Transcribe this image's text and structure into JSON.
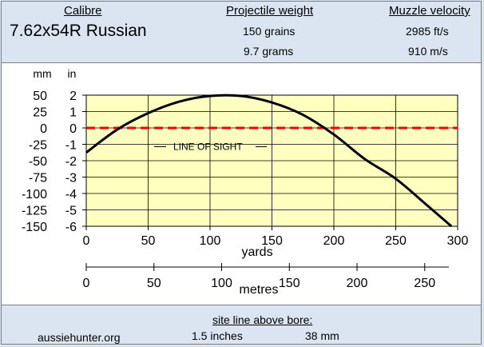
{
  "header": {
    "calibre_label": "Calibre",
    "calibre_value": "7.62x54R Russian",
    "projectile_label": "Projectile weight",
    "projectile_grains": "150 grains",
    "projectile_grams": "9.7 grams",
    "velocity_label": "Muzzle velocity",
    "velocity_fps": "2985 ft/s",
    "velocity_ms": "910 m/s"
  },
  "footer": {
    "site_line_label": "site line above bore:",
    "site": "aussiehunter.org",
    "height_in": "1.5 inches",
    "height_mm": "38 mm"
  },
  "colors": {
    "plot_bg": "#ffffc0",
    "trajectory": "#000000",
    "line_of_sight": "#ff0000",
    "grid": "#000000"
  },
  "chart_data": {
    "type": "line",
    "annotation": "LINE OF SIGHT",
    "xlabel": "yards",
    "xlabel2": "metres",
    "ylabel_left": "mm",
    "ylabel_right": "in",
    "xlim": [
      0,
      300
    ],
    "ylim": [
      -6,
      2
    ],
    "x_ticks": [
      0,
      50,
      100,
      150,
      200,
      250,
      300
    ],
    "x2_ticks": [
      0,
      50,
      100,
      150,
      200,
      250
    ],
    "y_ticks_in": [
      2,
      1,
      0,
      -1,
      -2,
      -3,
      -4,
      -5,
      -6
    ],
    "y_ticks_mm": [
      50,
      25,
      0,
      -25,
      -50,
      -75,
      -100,
      -125,
      -150
    ],
    "grid": true,
    "series": [
      {
        "x": [
          0,
          25,
          50,
          75,
          100,
          125,
          150,
          175,
          200,
          225,
          250,
          275,
          295
        ],
        "y": [
          -1.5,
          -0.1,
          0.9,
          1.6,
          1.95,
          1.95,
          1.55,
          0.8,
          -0.4,
          -1.9,
          -3.1,
          -4.7,
          -6.0
        ]
      },
      {
        "x": [
          0,
          300
        ],
        "y": [
          0,
          0
        ],
        "style": "dashed"
      }
    ]
  }
}
